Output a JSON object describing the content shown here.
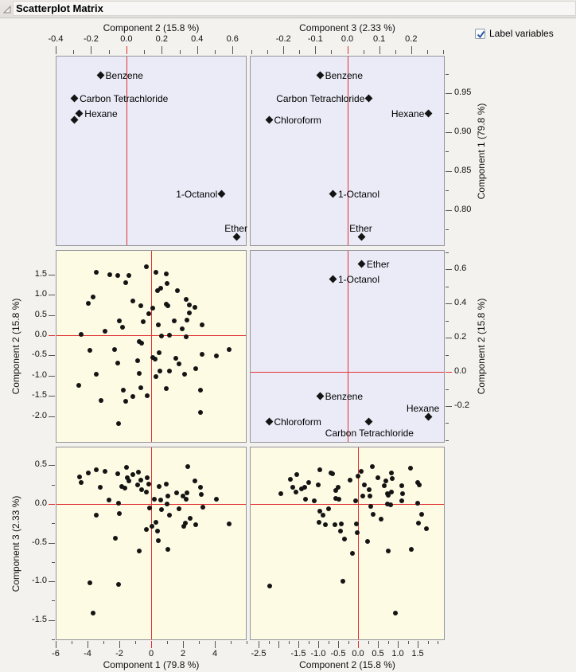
{
  "window": {
    "title": "Scatterplot Matrix"
  },
  "controls": {
    "label_variables": {
      "label": "Label variables",
      "checked": true
    }
  },
  "icons": {
    "disclosure": "open-triangle",
    "checkbox": "blue-check-mark"
  },
  "colors": {
    "page_bg": "#f3f2ef",
    "loading_panel_bg": "#ebebf8",
    "score_panel_bg": "#fdfbe4",
    "panel_border": "#94949b",
    "reference_line": "#e03131",
    "marker": "#141414",
    "check": "#2c5aa5"
  },
  "axes": [
    {
      "side": "top",
      "col": 0,
      "title": "Component 2  (15.8 %)",
      "range": [
        -0.4,
        0.68
      ],
      "majors": [
        -0.4,
        -0.2,
        0,
        0.2,
        0.4,
        0.6
      ],
      "labels": [
        "-0.4",
        "-0.2",
        "0.0",
        "0.2",
        "0.4",
        "0.6"
      ],
      "minor": 0.1
    },
    {
      "side": "top",
      "col": 1,
      "title": "Component 3  (2.33 %)",
      "range": [
        -0.305,
        0.305
      ],
      "majors": [
        -0.2,
        -0.1,
        0,
        0.1,
        0.2
      ],
      "labels": [
        "-0.2",
        "-0.1",
        "0.0",
        "0.1",
        "0.2"
      ],
      "minor": 0.05
    },
    {
      "side": "right",
      "row": 0,
      "title": "Component 1  (79.8 %)",
      "range": [
        0.754,
        0.998
      ],
      "majors": [
        0.8,
        0.85,
        0.9,
        0.95
      ],
      "labels": [
        "0.80",
        "0.85",
        "0.90",
        "0.95"
      ],
      "minor": 0.025
    },
    {
      "side": "right",
      "row": 1,
      "title": "Component 2  (15.8 %)",
      "range": [
        -0.414,
        0.712
      ],
      "majors": [
        -0.2,
        0,
        0.2,
        0.4,
        0.6
      ],
      "labels": [
        "-0.2",
        "0.0",
        "0.2",
        "0.4",
        "0.6"
      ],
      "minor": 0.1
    },
    {
      "side": "left",
      "row": 1,
      "title": "Component 2  (15.8 %)",
      "range": [
        -2.65,
        2.1
      ],
      "majors": [
        -2,
        -1.5,
        -1,
        -0.5,
        0,
        0.5,
        1,
        1.5
      ],
      "labels": [
        "-2.0",
        "-1.5",
        "-1.0",
        "-0.5",
        "0.0",
        "0.5",
        "1.0",
        "1.5"
      ],
      "minor": null
    },
    {
      "side": "left",
      "row": 2,
      "title": "Component 3  (2.33 %)",
      "range": [
        -1.76,
        0.74
      ],
      "majors": [
        -1.5,
        -1,
        -0.5,
        0,
        0.5
      ],
      "labels": [
        "-1.5",
        "-1.0",
        "-0.5",
        "0.0",
        "0.5"
      ],
      "minor": 0.25
    },
    {
      "side": "bottom",
      "col": 0,
      "title": "Component 1  (79.8 %)",
      "range": [
        -6,
        6
      ],
      "majors": [
        -6,
        -4,
        -2,
        0,
        2,
        4
      ],
      "labels": [
        "-6",
        "-4",
        "-2",
        "0",
        "2",
        "4"
      ],
      "minor": 1
    },
    {
      "side": "bottom",
      "col": 1,
      "title": "Component 2  (15.8 %)",
      "range": [
        -2.72,
        2.18
      ],
      "majors": [
        -2.5,
        -2,
        -1.5,
        -1,
        -0.5,
        0,
        0.5,
        1,
        1.5
      ],
      "labels": [
        "-2.5",
        "",
        "-1.5",
        "-1.0",
        "-0.5",
        "0.0",
        "0.5",
        "1.0",
        "1.5"
      ],
      "minor": 0.25
    }
  ],
  "chart_data": [
    {
      "type": "scatter",
      "id": "loadings-pc2-pc1",
      "kind": "loadings",
      "marker": "diamond",
      "xlabel": "Component 2 (15.8 %)",
      "ylabel": "Component 1 (79.8 %)",
      "x_range": [
        -0.4,
        0.68
      ],
      "y_range": [
        0.754,
        0.998
      ],
      "ref_x": 0,
      "ref_y": null,
      "points": [
        {
          "label": "Benzene",
          "x": -0.148,
          "y": 0.973,
          "label_pos": "right"
        },
        {
          "label": "Carbon Tetrachloride",
          "x": -0.295,
          "y": 0.943,
          "label_pos": "right"
        },
        {
          "label": "Hexane",
          "x": -0.267,
          "y": 0.924,
          "label_pos": "right"
        },
        {
          "label": "",
          "x": -0.295,
          "y": 0.916,
          "label_pos": "right"
        },
        {
          "label": "1-Octanol",
          "x": 0.545,
          "y": 0.82,
          "label_pos": "left"
        },
        {
          "label": "Ether",
          "x": 0.63,
          "y": 0.764,
          "label_pos": "above-left"
        }
      ]
    },
    {
      "type": "scatter",
      "id": "loadings-pc3-pc1",
      "kind": "loadings",
      "marker": "diamond",
      "xlabel": "Component 3 (2.33 %)",
      "ylabel": "Component 1 (79.8 %)",
      "x_range": [
        -0.305,
        0.305
      ],
      "y_range": [
        0.754,
        0.998
      ],
      "ref_x": 0,
      "ref_y": null,
      "points": [
        {
          "label": "Benzene",
          "x": -0.085,
          "y": 0.973,
          "label_pos": "right"
        },
        {
          "label": "Carbon Tetrachloride",
          "x": 0.07,
          "y": 0.943,
          "label_pos": "left"
        },
        {
          "label": "Hexane",
          "x": 0.258,
          "y": 0.924,
          "label_pos": "left"
        },
        {
          "label": "Chloroform",
          "x": -0.246,
          "y": 0.916,
          "label_pos": "right"
        },
        {
          "label": "1-Octanol",
          "x": -0.044,
          "y": 0.82,
          "label_pos": "right"
        },
        {
          "label": "Ether",
          "x": 0.046,
          "y": 0.764,
          "label_pos": "above-left"
        }
      ]
    },
    {
      "type": "scatter",
      "id": "scores-pc1-pc2",
      "kind": "scores",
      "marker": "dot",
      "xlabel": "Component 1 (79.8 %)",
      "ylabel": "Component 2 (15.8 %)",
      "x_range": [
        -6,
        6
      ],
      "y_range": [
        -2.65,
        2.1
      ],
      "ref_x": 0,
      "ref_y": 0,
      "points": [
        [
          -3.47,
          1.57
        ],
        [
          -2.63,
          1.5
        ],
        [
          -2.1,
          1.48
        ],
        [
          -1.43,
          1.49
        ],
        [
          -1.63,
          1.3
        ],
        [
          -0.32,
          1.71
        ],
        [
          0.32,
          1.56
        ],
        [
          0.95,
          1.52
        ],
        [
          1.02,
          1.29
        ],
        [
          -3.7,
          0.96
        ],
        [
          -4.0,
          0.8
        ],
        [
          -1.17,
          0.86
        ],
        [
          -0.65,
          0.74
        ],
        [
          0.1,
          0.67
        ],
        [
          0.38,
          1.11
        ],
        [
          0.63,
          1.17
        ],
        [
          0.98,
          0.77
        ],
        [
          1.07,
          0.74
        ],
        [
          1.68,
          1.12
        ],
        [
          2.22,
          0.9
        ],
        [
          2.4,
          0.76
        ],
        [
          2.77,
          0.69
        ],
        [
          2.42,
          0.56
        ],
        [
          -0.17,
          0.53
        ],
        [
          -0.5,
          0.34
        ],
        [
          -2.02,
          0.35
        ],
        [
          -1.83,
          0.2
        ],
        [
          -2.92,
          0.11
        ],
        [
          -4.45,
          0.02
        ],
        [
          1.47,
          0.35
        ],
        [
          2.28,
          0.37
        ],
        [
          1.98,
          0.17
        ],
        [
          3.23,
          0.26
        ],
        [
          0.45,
          0.25
        ],
        [
          0.68,
          -0.01
        ],
        [
          1.15,
          0.0
        ],
        [
          2.2,
          -0.04
        ],
        [
          -0.78,
          -0.16
        ],
        [
          -0.63,
          -0.19
        ],
        [
          -3.88,
          -0.37
        ],
        [
          -2.3,
          -0.35
        ],
        [
          -0.85,
          -0.64
        ],
        [
          0.12,
          -0.55
        ],
        [
          0.48,
          -0.44
        ],
        [
          0.27,
          -0.59
        ],
        [
          1.55,
          -0.57
        ],
        [
          1.75,
          -0.72
        ],
        [
          2.82,
          -0.82
        ],
        [
          3.23,
          -0.48
        ],
        [
          4.13,
          -0.51
        ],
        [
          4.92,
          -0.35
        ],
        [
          -2.13,
          -0.7
        ],
        [
          -3.47,
          -0.97
        ],
        [
          -0.75,
          -0.95
        ],
        [
          0.28,
          -1.03
        ],
        [
          0.57,
          -0.89
        ],
        [
          1.17,
          -0.88
        ],
        [
          2.12,
          -0.97
        ],
        [
          -4.58,
          -1.24
        ],
        [
          -0.68,
          -1.3
        ],
        [
          -1.77,
          -1.37
        ],
        [
          -1.15,
          -1.53
        ],
        [
          -0.23,
          -1.5
        ],
        [
          -1.6,
          -1.65
        ],
        [
          -3.2,
          -1.63
        ],
        [
          0.95,
          -1.33
        ],
        [
          3.15,
          -1.37
        ],
        [
          3.13,
          -1.92
        ],
        [
          -2.07,
          -2.2
        ]
      ]
    },
    {
      "type": "scatter",
      "id": "loadings-pc3-pc2",
      "kind": "loadings",
      "marker": "diamond",
      "xlabel": "Component 3 (2.33 %)",
      "ylabel": "Component 2 (15.8 %)",
      "x_range": [
        -0.305,
        0.305
      ],
      "y_range": [
        -0.414,
        0.712
      ],
      "ref_x": 0,
      "ref_y": 0,
      "points": [
        {
          "label": "Ether",
          "x": 0.046,
          "y": 0.63,
          "label_pos": "right"
        },
        {
          "label": "1-Octanol",
          "x": -0.044,
          "y": 0.545,
          "label_pos": "right"
        },
        {
          "label": "Benzene",
          "x": -0.085,
          "y": -0.148,
          "label_pos": "right"
        },
        {
          "label": "Hexane",
          "x": 0.258,
          "y": -0.267,
          "label_pos": "above-left"
        },
        {
          "label": "Carbon Tetrachloride",
          "x": 0.07,
          "y": -0.295,
          "label_pos": "below"
        },
        {
          "label": "Chloroform",
          "x": -0.246,
          "y": -0.295,
          "label_pos": "right"
        }
      ]
    },
    {
      "type": "scatter",
      "id": "scores-pc1-pc3",
      "kind": "scores",
      "marker": "dot",
      "xlabel": "Component 1 (79.8 %)",
      "ylabel": "Component 3 (2.33 %)",
      "x_range": [
        -6,
        6
      ],
      "y_range": [
        -1.76,
        0.74
      ],
      "ref_x": 0,
      "ref_y": 0,
      "points": [
        [
          -4.53,
          0.36
        ],
        [
          -4.42,
          0.28
        ],
        [
          -3.97,
          0.41
        ],
        [
          -3.47,
          0.45
        ],
        [
          -2.92,
          0.43
        ],
        [
          -3.22,
          0.22
        ],
        [
          -2.67,
          0.06
        ],
        [
          -2.13,
          0.4
        ],
        [
          -2.08,
          0.01
        ],
        [
          -1.58,
          0.48
        ],
        [
          -1.53,
          0.35
        ],
        [
          -1.42,
          0.3
        ],
        [
          -1.88,
          0.23
        ],
        [
          -1.67,
          0.21
        ],
        [
          -1.17,
          0.39
        ],
        [
          -0.82,
          0.42
        ],
        [
          -0.87,
          0.25
        ],
        [
          -0.67,
          0.31
        ],
        [
          -0.63,
          0.19
        ],
        [
          -0.25,
          0.35
        ],
        [
          -0.13,
          0.26
        ],
        [
          -0.28,
          0.16
        ],
        [
          -0.08,
          -0.05
        ],
        [
          -3.47,
          -0.14
        ],
        [
          -2.03,
          -0.12
        ],
        [
          -2.27,
          -0.44
        ],
        [
          -0.75,
          -0.61
        ],
        [
          -0.32,
          -0.33
        ],
        [
          0.07,
          -0.29
        ],
        [
          0.3,
          -0.23
        ],
        [
          0.2,
          0.07
        ],
        [
          0.52,
          0.23
        ],
        [
          0.62,
          0.06
        ],
        [
          0.65,
          -0.07
        ],
        [
          0.42,
          -0.35
        ],
        [
          0.45,
          -0.47
        ],
        [
          0.95,
          0.26
        ],
        [
          1.0,
          0.0
        ],
        [
          1.05,
          0.11
        ],
        [
          1.18,
          -0.14
        ],
        [
          1.07,
          -0.59
        ],
        [
          1.63,
          0.15
        ],
        [
          1.77,
          -0.06
        ],
        [
          2.02,
          0.11
        ],
        [
          2.23,
          0.07
        ],
        [
          2.28,
          0.15
        ],
        [
          2.17,
          -0.25
        ],
        [
          2.08,
          -0.29
        ],
        [
          2.47,
          -0.18
        ],
        [
          2.77,
          0.3
        ],
        [
          2.83,
          -0.27
        ],
        [
          3.13,
          0.22
        ],
        [
          3.18,
          0.13
        ],
        [
          3.27,
          -0.04
        ],
        [
          4.13,
          0.07
        ],
        [
          4.92,
          -0.26
        ],
        [
          2.3,
          0.49
        ],
        [
          -3.87,
          -1.02
        ],
        [
          -2.07,
          -1.04
        ],
        [
          -3.7,
          -1.42
        ]
      ]
    },
    {
      "type": "scatter",
      "id": "scores-pc2-pc3",
      "kind": "scores",
      "marker": "dot",
      "xlabel": "Component 2 (15.8 %)",
      "ylabel": "Component 3 (2.33 %)",
      "x_range": [
        -2.72,
        2.18
      ],
      "y_range": [
        -1.76,
        0.74
      ],
      "ref_x": 0,
      "ref_y": 0,
      "points": [
        [
          -2.23,
          -1.06
        ],
        [
          -1.96,
          0.14
        ],
        [
          -1.71,
          0.33
        ],
        [
          -1.66,
          0.22
        ],
        [
          -1.56,
          0.39
        ],
        [
          -1.57,
          0.16
        ],
        [
          -1.43,
          0.2
        ],
        [
          -1.35,
          0.22
        ],
        [
          -1.33,
          0.07
        ],
        [
          -1.24,
          0.28
        ],
        [
          -1.11,
          0.05
        ],
        [
          -1.01,
          0.25
        ],
        [
          -0.97,
          0.45
        ],
        [
          -0.99,
          -0.23
        ],
        [
          -0.96,
          -0.09
        ],
        [
          -0.89,
          -0.14
        ],
        [
          -0.83,
          -0.27
        ],
        [
          -0.75,
          -0.06
        ],
        [
          -0.69,
          0.41
        ],
        [
          -0.64,
          0.4
        ],
        [
          -0.57,
          0.18
        ],
        [
          -0.56,
          0.08
        ],
        [
          -0.51,
          0.22
        ],
        [
          -0.49,
          0.07
        ],
        [
          -0.58,
          -0.27
        ],
        [
          -0.43,
          -0.26
        ],
        [
          -0.45,
          -0.35
        ],
        [
          -0.38,
          -1.0
        ],
        [
          -0.34,
          -0.45
        ],
        [
          -0.19,
          0.31
        ],
        [
          -0.13,
          -0.64
        ],
        [
          -0.05,
          0.05
        ],
        [
          -0.03,
          -0.26
        ],
        [
          -0.01,
          -0.37
        ],
        [
          0.01,
          0.37
        ],
        [
          0.09,
          0.43
        ],
        [
          0.12,
          0.11
        ],
        [
          0.17,
          0.25
        ],
        [
          0.25,
          -0.48
        ],
        [
          0.29,
          0.19
        ],
        [
          0.31,
          0.11
        ],
        [
          0.32,
          -0.03
        ],
        [
          0.36,
          0.49
        ],
        [
          0.39,
          -0.13
        ],
        [
          0.51,
          0.35
        ],
        [
          0.59,
          -0.19
        ],
        [
          0.66,
          0.24
        ],
        [
          0.71,
          0.3
        ],
        [
          0.75,
          0.14
        ],
        [
          0.77,
          0.12
        ],
        [
          0.74,
          0.0
        ],
        [
          0.82,
          -0.01
        ],
        [
          0.84,
          0.41
        ],
        [
          0.85,
          0.16
        ],
        [
          0.87,
          0.34
        ],
        [
          0.77,
          -0.61
        ],
        [
          0.96,
          -1.42
        ],
        [
          1.11,
          0.24
        ],
        [
          1.14,
          0.14
        ],
        [
          1.12,
          0.05
        ],
        [
          1.34,
          0.47
        ],
        [
          1.36,
          -0.59
        ],
        [
          1.51,
          0.28
        ],
        [
          1.56,
          0.25
        ],
        [
          1.51,
          0.01
        ],
        [
          1.54,
          -0.25
        ],
        [
          1.61,
          -0.13
        ],
        [
          1.74,
          -0.32
        ]
      ]
    }
  ]
}
